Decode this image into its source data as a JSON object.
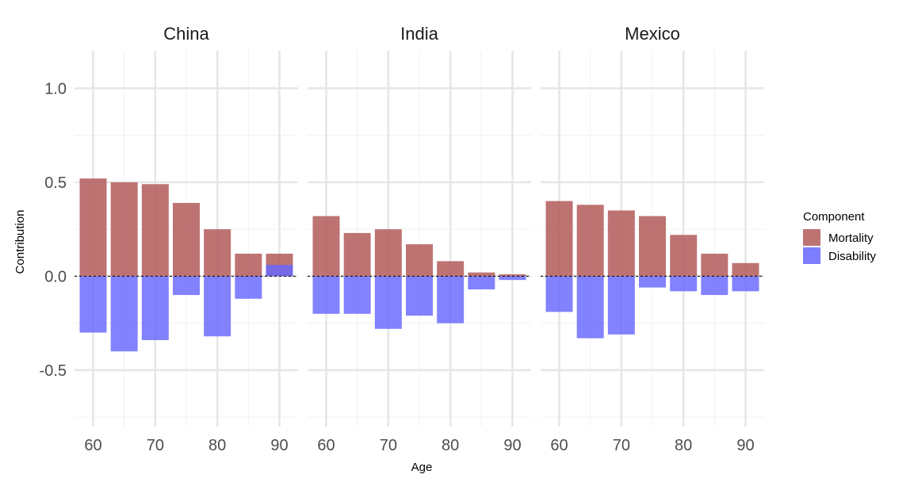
{
  "chart_data": {
    "type": "bar",
    "layout": "faceted",
    "xlabel": "Age",
    "ylabel": "Contribution",
    "ylim": [
      -0.8,
      1.2
    ],
    "xlim": [
      57,
      93
    ],
    "y_ticks": [
      -0.5,
      0.0,
      0.5,
      1.0
    ],
    "y_tick_labels": [
      "-0.5",
      "0.0",
      "0.5",
      "1.0"
    ],
    "x_ticks": [
      60,
      70,
      80,
      90
    ],
    "x_tick_labels": [
      "60",
      "70",
      "80",
      "90"
    ],
    "grid": true,
    "zero_line": "dashed",
    "legend": {
      "title": "Component",
      "placement": "right",
      "entries": [
        {
          "name": "Mortality",
          "color": "#b35a5a"
        },
        {
          "name": "Disability",
          "color": "#6666ff"
        }
      ]
    },
    "x": [
      60,
      65,
      70,
      75,
      80,
      85,
      90
    ],
    "facets": [
      {
        "title": "China",
        "series": [
          {
            "name": "Mortality",
            "values": [
              0.52,
              0.5,
              0.49,
              0.39,
              0.25,
              0.12,
              0.12
            ]
          },
          {
            "name": "Disability",
            "values": [
              -0.3,
              -0.4,
              -0.34,
              -0.1,
              -0.32,
              -0.12,
              0.06
            ]
          }
        ]
      },
      {
        "title": "India",
        "series": [
          {
            "name": "Mortality",
            "values": [
              0.32,
              0.23,
              0.25,
              0.17,
              0.08,
              0.02,
              0.01
            ]
          },
          {
            "name": "Disability",
            "values": [
              -0.2,
              -0.2,
              -0.28,
              -0.21,
              -0.25,
              -0.07,
              -0.02
            ]
          }
        ]
      },
      {
        "title": "Mexico",
        "series": [
          {
            "name": "Mortality",
            "values": [
              0.4,
              0.38,
              0.35,
              0.32,
              0.22,
              0.12,
              0.07
            ]
          },
          {
            "name": "Disability",
            "values": [
              -0.19,
              -0.33,
              -0.31,
              -0.06,
              -0.08,
              -0.1,
              -0.08
            ]
          }
        ]
      }
    ]
  }
}
